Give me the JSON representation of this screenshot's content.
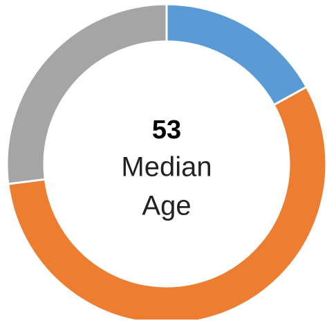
{
  "chart_data": {
    "type": "donut",
    "values": [
      17,
      56,
      27
    ],
    "colors": [
      "#5b9bd5",
      "#ed7d31",
      "#a5a5a5"
    ],
    "center_value": "53",
    "center_label": [
      "Median",
      "Age"
    ]
  }
}
